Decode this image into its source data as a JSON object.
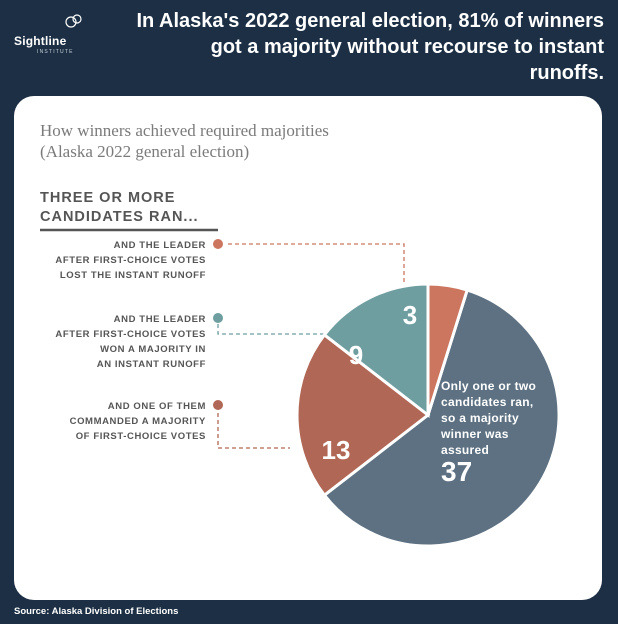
{
  "brand": {
    "name": "Sightline",
    "subname": "INSTITUTE"
  },
  "headline": "In Alaska's 2022 general election, 81% of winners got a majority without recourse to instant runoffs.",
  "subtitle_line1": "How winners achieved required majorities",
  "subtitle_line2": "(Alaska 2022 general election)",
  "group_heading": "Three or more candidates ran...",
  "labels": {
    "lost_runoff": [
      "and the leader",
      "after first-choice votes",
      "lost the instant runoff"
    ],
    "won_runoff": [
      "and the leader",
      "after first-choice votes",
      "won a majority in",
      "an instant runoff"
    ],
    "majority": [
      "and one of them",
      "commanded a majority",
      "of first-choice votes"
    ],
    "one_or_two": [
      "Only one or two",
      "candidates ran,",
      "so a majority",
      "winner was",
      "assured"
    ]
  },
  "source": "Source: Alaska Division of Elections",
  "colors": {
    "background": "#1c2f44",
    "slate": "#5d7182",
    "rust": "#b06755",
    "teal": "#6f9ea0",
    "coral": "#cc7660"
  },
  "chart_data": {
    "type": "pie",
    "title": "How winners achieved required majorities (Alaska 2022 general election)",
    "slices": [
      {
        "label": "Only one or two candidates ran, so a majority winner was assured",
        "value": 37,
        "color": "#5d7182"
      },
      {
        "label": "Three or more candidates ran, and one of them commanded a majority of first-choice votes",
        "value": 13,
        "color": "#b06755"
      },
      {
        "label": "Three or more candidates ran, and the leader after first-choice votes won a majority in an instant runoff",
        "value": 9,
        "color": "#6f9ea0"
      },
      {
        "label": "Three or more candidates ran, and the leader after first-choice votes lost the instant runoff",
        "value": 3,
        "color": "#cc7660"
      }
    ]
  }
}
